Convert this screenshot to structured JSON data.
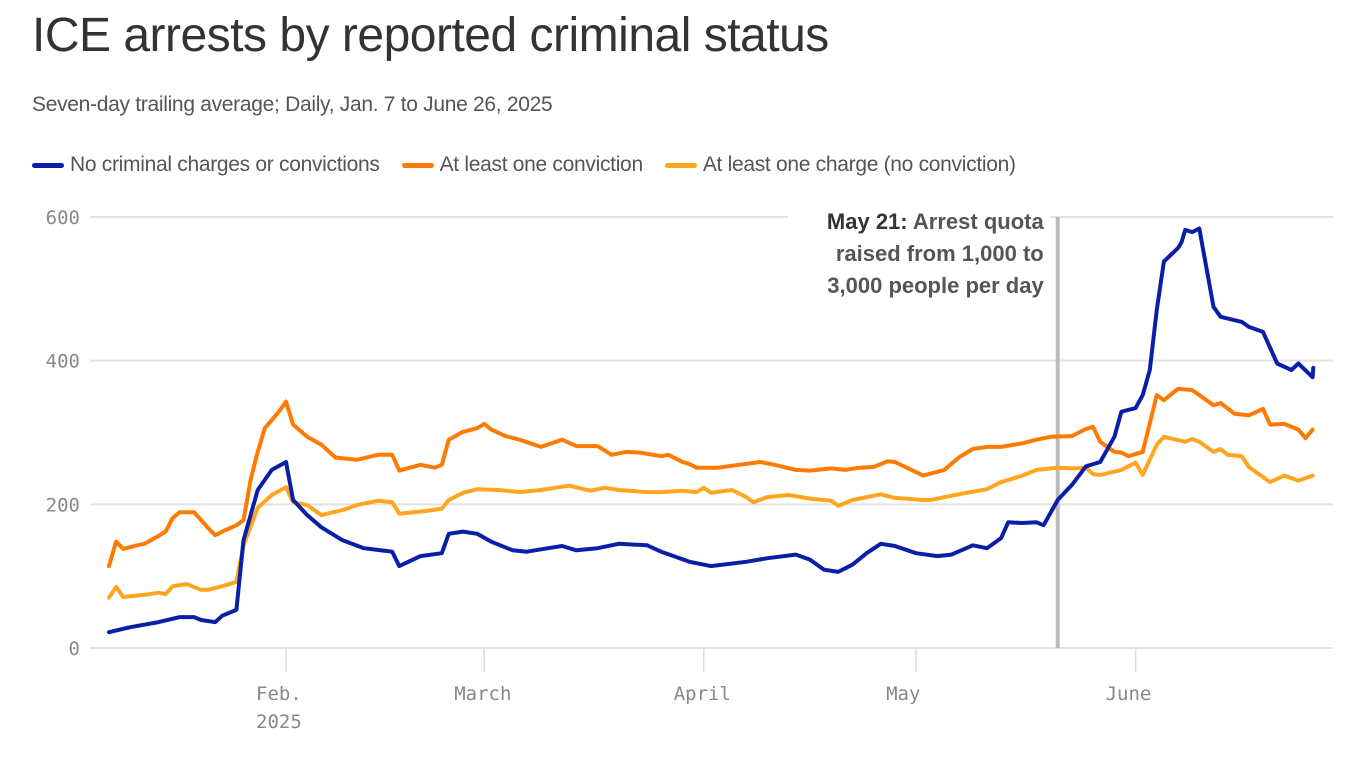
{
  "header": {
    "title": "ICE arrests by reported criminal status",
    "subtitle": "Seven-day trailing average; Daily, Jan. 7 to June 26, 2025"
  },
  "chart_data": {
    "type": "line",
    "title": "ICE arrests by reported criminal status",
    "subtitle": "Seven-day trailing average; Daily, Jan. 7 to June 26, 2025",
    "x_unit": "days since 2025-01-07",
    "x_start_date": "2025-01-07",
    "x_end_date": "2025-06-26",
    "xlim": [
      0,
      170
    ],
    "ylim": [
      0,
      600
    ],
    "yticks": [
      0,
      200,
      400,
      600
    ],
    "grid": true,
    "xticks": [
      {
        "day": 25,
        "label": "Feb.",
        "sublabel": "2025"
      },
      {
        "day": 53,
        "label": "March",
        "sublabel": ""
      },
      {
        "day": 84,
        "label": "April",
        "sublabel": ""
      },
      {
        "day": 114,
        "label": "May",
        "sublabel": ""
      },
      {
        "day": 145,
        "label": "June",
        "sublabel": ""
      }
    ],
    "legend_position": "top-left",
    "annotation": {
      "day": 134,
      "bold": "May 21:",
      "lines": [
        " Arrest quota",
        "raised from 1,000 to",
        "3,000 people per day"
      ]
    },
    "series": [
      {
        "name": "No criminal charges or convictions",
        "color": "#0a1fa8",
        "points": [
          [
            0,
            22
          ],
          [
            3,
            29
          ],
          [
            7,
            36
          ],
          [
            10,
            43
          ],
          [
            12,
            43
          ],
          [
            13,
            39
          ],
          [
            15,
            36
          ],
          [
            16,
            45
          ],
          [
            18,
            53
          ],
          [
            19,
            150
          ],
          [
            21,
            220
          ],
          [
            23,
            248
          ],
          [
            25,
            259
          ],
          [
            26,
            206
          ],
          [
            28,
            185
          ],
          [
            30,
            168
          ],
          [
            33,
            150
          ],
          [
            36,
            139
          ],
          [
            40,
            134
          ],
          [
            41,
            114
          ],
          [
            44,
            128
          ],
          [
            47,
            132
          ],
          [
            48,
            159
          ],
          [
            50,
            162
          ],
          [
            52,
            159
          ],
          [
            54,
            148
          ],
          [
            57,
            136
          ],
          [
            59,
            134
          ],
          [
            62,
            139
          ],
          [
            64,
            142
          ],
          [
            66,
            136
          ],
          [
            69,
            139
          ],
          [
            72,
            145
          ],
          [
            76,
            143
          ],
          [
            78,
            134
          ],
          [
            82,
            120
          ],
          [
            85,
            114
          ],
          [
            90,
            120
          ],
          [
            93,
            125
          ],
          [
            97,
            130
          ],
          [
            99,
            123
          ],
          [
            101,
            109
          ],
          [
            103,
            106
          ],
          [
            105,
            116
          ],
          [
            107,
            132
          ],
          [
            109,
            145
          ],
          [
            111,
            142
          ],
          [
            114,
            132
          ],
          [
            117,
            128
          ],
          [
            119,
            130
          ],
          [
            122,
            143
          ],
          [
            124,
            139
          ],
          [
            126,
            153
          ],
          [
            127,
            175
          ],
          [
            129,
            174
          ],
          [
            131,
            175
          ],
          [
            132,
            171
          ],
          [
            134,
            206
          ],
          [
            136,
            227
          ],
          [
            138,
            253
          ],
          [
            140,
            259
          ],
          [
            142,
            294
          ],
          [
            143,
            329
          ],
          [
            145,
            334
          ],
          [
            146,
            352
          ],
          [
            147,
            387
          ],
          [
            148,
            471
          ],
          [
            149,
            538
          ],
          [
            151,
            557
          ],
          [
            151.5,
            565
          ],
          [
            152,
            582
          ],
          [
            153,
            579
          ],
          [
            154,
            584
          ],
          [
            156,
            475
          ],
          [
            157,
            461
          ],
          [
            160,
            454
          ],
          [
            161,
            447
          ],
          [
            163,
            440
          ],
          [
            165,
            396
          ],
          [
            167,
            387
          ],
          [
            168,
            396
          ],
          [
            170,
            377
          ],
          [
            170.1,
            390
          ]
        ]
      },
      {
        "name": "At least one conviction",
        "color": "#ff7a00",
        "points": [
          [
            0,
            114
          ],
          [
            1,
            148
          ],
          [
            2,
            138
          ],
          [
            4,
            143
          ],
          [
            5,
            145
          ],
          [
            7,
            156
          ],
          [
            8,
            162
          ],
          [
            9,
            181
          ],
          [
            10,
            189
          ],
          [
            12,
            189
          ],
          [
            14,
            167
          ],
          [
            15,
            157
          ],
          [
            16,
            162
          ],
          [
            18,
            171
          ],
          [
            19,
            178
          ],
          [
            20,
            234
          ],
          [
            21,
            273
          ],
          [
            22,
            306
          ],
          [
            24,
            329
          ],
          [
            25,
            343
          ],
          [
            26,
            311
          ],
          [
            28,
            294
          ],
          [
            30,
            283
          ],
          [
            32,
            265
          ],
          [
            35,
            262
          ],
          [
            38,
            269
          ],
          [
            40,
            269
          ],
          [
            41,
            247
          ],
          [
            44,
            255
          ],
          [
            46,
            251
          ],
          [
            47,
            255
          ],
          [
            48,
            290
          ],
          [
            50,
            301
          ],
          [
            52,
            306
          ],
          [
            53,
            312
          ],
          [
            54,
            304
          ],
          [
            56,
            295
          ],
          [
            58,
            290
          ],
          [
            61,
            280
          ],
          [
            64,
            290
          ],
          [
            66,
            281
          ],
          [
            69,
            281
          ],
          [
            71,
            269
          ],
          [
            73,
            273
          ],
          [
            75,
            272
          ],
          [
            78,
            267
          ],
          [
            79,
            269
          ],
          [
            81,
            259
          ],
          [
            82,
            256
          ],
          [
            83,
            251
          ],
          [
            86,
            251
          ],
          [
            89,
            255
          ],
          [
            92,
            259
          ],
          [
            94,
            255
          ],
          [
            97,
            248
          ],
          [
            99,
            247
          ],
          [
            102,
            250
          ],
          [
            104,
            248
          ],
          [
            106,
            251
          ],
          [
            108,
            252
          ],
          [
            110,
            260
          ],
          [
            111,
            259
          ],
          [
            115,
            240
          ],
          [
            118,
            248
          ],
          [
            120,
            265
          ],
          [
            122,
            277
          ],
          [
            124,
            280
          ],
          [
            126,
            280
          ],
          [
            129,
            285
          ],
          [
            131,
            290
          ],
          [
            133,
            294
          ],
          [
            136,
            295
          ],
          [
            138,
            305
          ],
          [
            139,
            308
          ],
          [
            140,
            287
          ],
          [
            142,
            273
          ],
          [
            143,
            272
          ],
          [
            144,
            267
          ],
          [
            146,
            273
          ],
          [
            148,
            352
          ],
          [
            149,
            345
          ],
          [
            151,
            361
          ],
          [
            153,
            359
          ],
          [
            154,
            352
          ],
          [
            156,
            338
          ],
          [
            157,
            341
          ],
          [
            159,
            326
          ],
          [
            161,
            324
          ],
          [
            163,
            333
          ],
          [
            164,
            311
          ],
          [
            166,
            312
          ],
          [
            168,
            304
          ],
          [
            169,
            292
          ],
          [
            170,
            304
          ]
        ]
      },
      {
        "name": "At least one charge (no conviction)",
        "color": "#ffa51f",
        "points": [
          [
            0,
            70
          ],
          [
            1,
            85
          ],
          [
            2,
            71
          ],
          [
            5,
            74
          ],
          [
            7,
            77
          ],
          [
            8,
            75
          ],
          [
            9,
            86
          ],
          [
            11,
            89
          ],
          [
            13,
            81
          ],
          [
            14,
            81
          ],
          [
            16,
            86
          ],
          [
            18,
            92
          ],
          [
            19,
            143
          ],
          [
            21,
            195
          ],
          [
            23,
            213
          ],
          [
            25,
            224
          ],
          [
            26,
            203
          ],
          [
            28,
            199
          ],
          [
            30,
            185
          ],
          [
            33,
            192
          ],
          [
            35,
            199
          ],
          [
            38,
            205
          ],
          [
            40,
            203
          ],
          [
            41,
            187
          ],
          [
            43,
            189
          ],
          [
            45,
            191
          ],
          [
            47,
            194
          ],
          [
            48,
            206
          ],
          [
            50,
            216
          ],
          [
            52,
            221
          ],
          [
            55,
            220
          ],
          [
            58,
            217
          ],
          [
            61,
            220
          ],
          [
            65,
            226
          ],
          [
            68,
            219
          ],
          [
            70,
            223
          ],
          [
            72,
            220
          ],
          [
            76,
            217
          ],
          [
            78,
            217
          ],
          [
            81,
            219
          ],
          [
            83,
            217
          ],
          [
            84,
            223
          ],
          [
            85,
            216
          ],
          [
            88,
            220
          ],
          [
            90,
            210
          ],
          [
            91,
            203
          ],
          [
            93,
            210
          ],
          [
            96,
            213
          ],
          [
            99,
            208
          ],
          [
            102,
            205
          ],
          [
            103,
            198
          ],
          [
            105,
            206
          ],
          [
            109,
            214
          ],
          [
            111,
            209
          ],
          [
            115,
            206
          ],
          [
            116,
            206
          ],
          [
            120,
            214
          ],
          [
            124,
            221
          ],
          [
            126,
            231
          ],
          [
            129,
            240
          ],
          [
            131,
            248
          ],
          [
            134,
            251
          ],
          [
            136,
            250
          ],
          [
            138,
            251
          ],
          [
            139,
            242
          ],
          [
            140,
            241
          ],
          [
            143,
            248
          ],
          [
            145,
            258
          ],
          [
            146,
            241
          ],
          [
            148,
            283
          ],
          [
            149,
            294
          ],
          [
            152,
            287
          ],
          [
            153,
            291
          ],
          [
            154,
            287
          ],
          [
            156,
            273
          ],
          [
            157,
            277
          ],
          [
            158,
            269
          ],
          [
            160,
            267
          ],
          [
            161,
            252
          ],
          [
            164,
            231
          ],
          [
            166,
            240
          ],
          [
            168,
            233
          ],
          [
            170,
            240
          ]
        ]
      }
    ]
  }
}
